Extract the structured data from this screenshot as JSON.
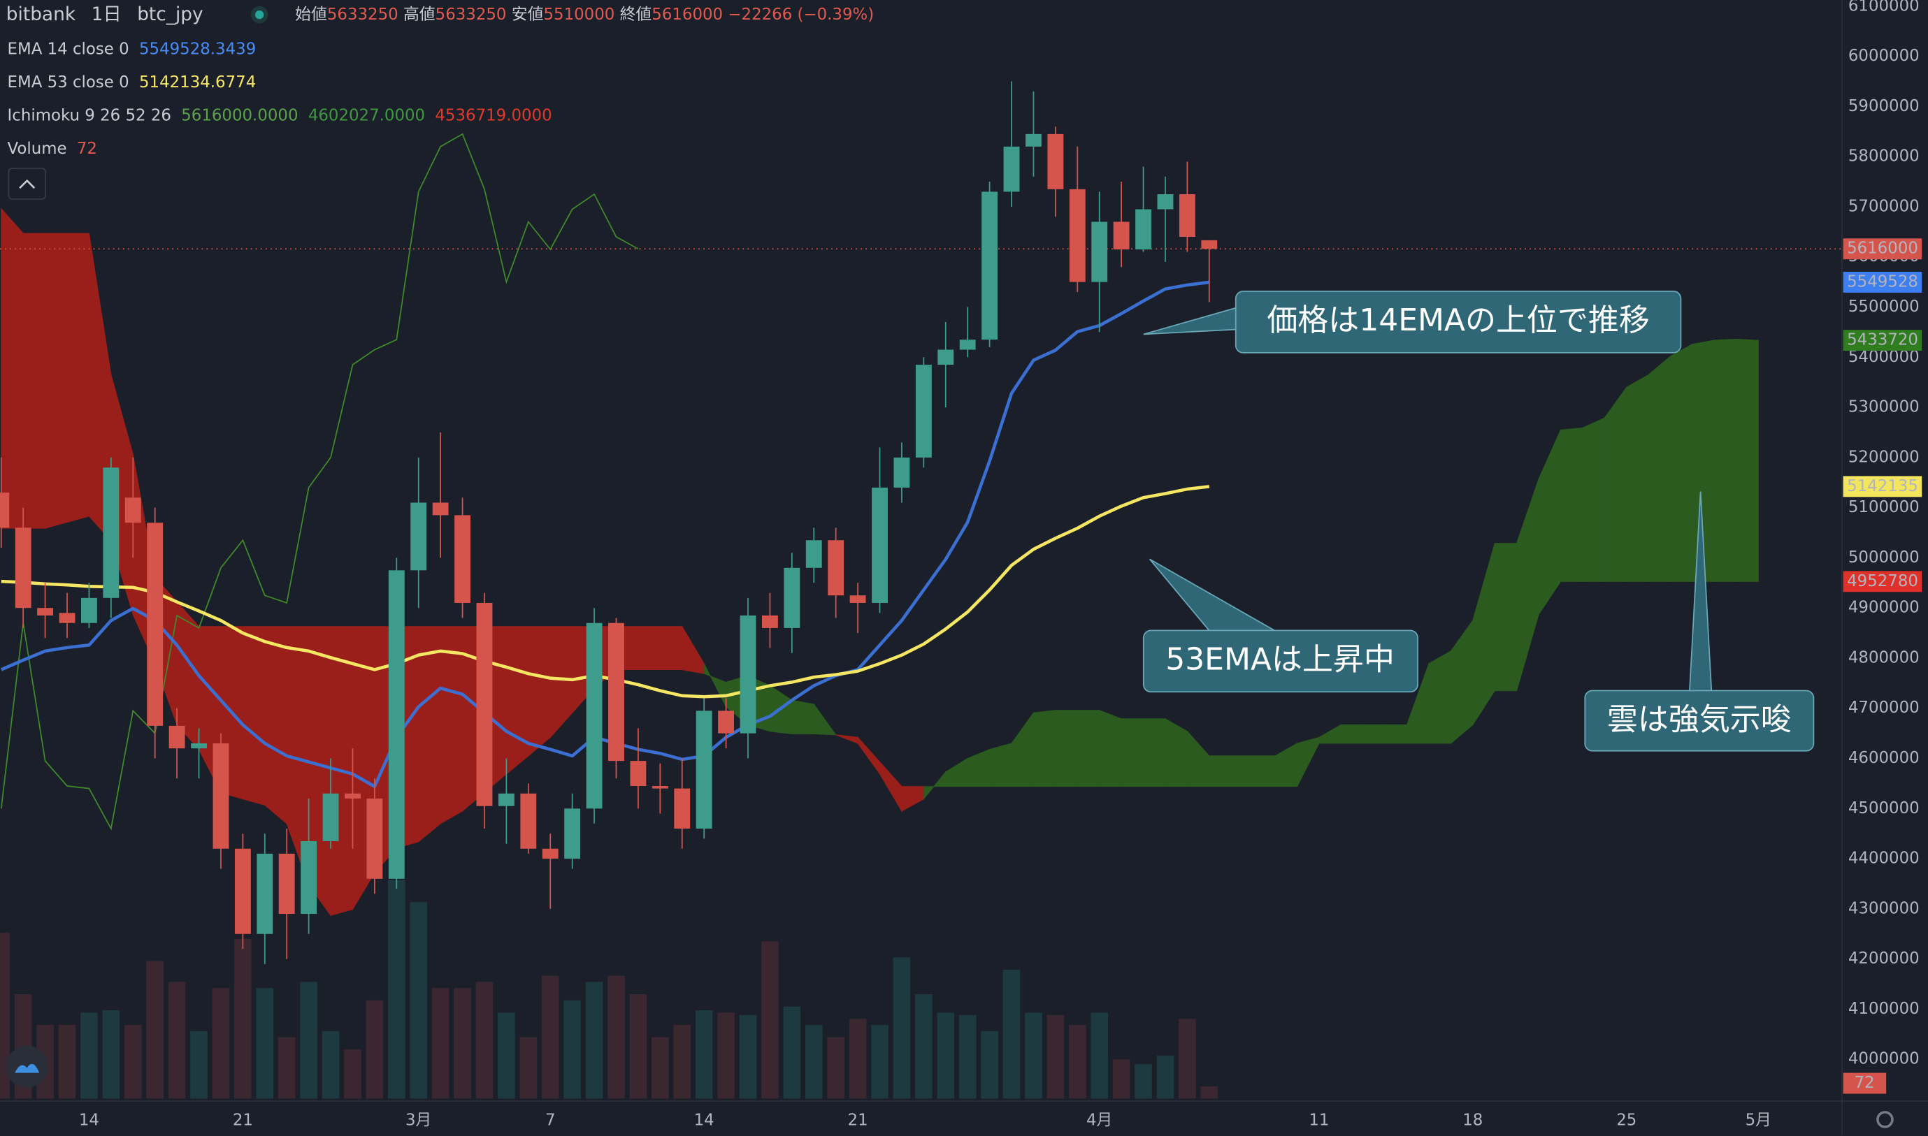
{
  "chart_data": {
    "type": "candlestick",
    "exchange": "bitbank",
    "interval": "1日",
    "symbol": "btc_jpy",
    "ohlc_labels": [
      "始値",
      "高値",
      "安値",
      "終値"
    ],
    "change_label": "−22266 (−0.39%)",
    "annotations": [
      "価格は14EMAの上位で推移",
      "53EMAは上昇中",
      "雲は強気示唆"
    ],
    "xlim": [
      0,
      80
    ],
    "xticks": [
      {
        "value": 4,
        "label": "14"
      },
      {
        "value": 11,
        "label": "21"
      },
      {
        "value": 19,
        "label": "3月"
      },
      {
        "value": 25,
        "label": "7"
      },
      {
        "value": 32,
        "label": "14"
      },
      {
        "value": 39,
        "label": "21"
      },
      {
        "value": 50,
        "label": "4月"
      },
      {
        "value": 60,
        "label": "11"
      },
      {
        "value": 67,
        "label": "18"
      },
      {
        "value": 74,
        "label": "25"
      },
      {
        "value": 80,
        "label": "5月"
      }
    ],
    "ylim": [
      4000000,
      6100000
    ],
    "yticks": [
      4000000,
      4100000,
      4200000,
      4300000,
      4400000,
      4500000,
      4600000,
      4700000,
      4800000,
      4900000,
      5000000,
      5100000,
      5200000,
      5300000,
      5400000,
      5500000,
      5600000,
      5700000,
      5800000,
      5900000,
      6000000,
      6100000
    ],
    "grid": false,
    "colors": {
      "up": "#3d9c8b",
      "down": "#d5554d",
      "volume_up": "#1c3a40",
      "volume_down": "#3a2730",
      "cloud_up": "#2b5b1f",
      "cloud_down": "#9a1f1a",
      "lagging": "#3f8a2a"
    },
    "candles": {
      "open": [
        5130000,
        5060000,
        4900000,
        4890000,
        4870000,
        4920000,
        5120000,
        5070000,
        4665000,
        4620000,
        4630000,
        4420000,
        4250000,
        4410000,
        4290000,
        4435000,
        4530000,
        4520000,
        4360000,
        4975000,
        5110000,
        5085000,
        4910000,
        4505000,
        4530000,
        4420000,
        4400000,
        4500000,
        4870000,
        4595000,
        4545000,
        4540000,
        4460000,
        4695000,
        4650000,
        4885000,
        4860000,
        4980000,
        5035000,
        4925000,
        4910000,
        5140000,
        5200000,
        5385000,
        5415000,
        5435000,
        5730000,
        5820000,
        5845000,
        5735000,
        5550000,
        5670000,
        5615000,
        5695000,
        5725000,
        5633250
      ],
      "high": [
        5200000,
        5100000,
        4950000,
        4930000,
        4950000,
        5200000,
        5200000,
        5100000,
        4700000,
        4660000,
        4650000,
        4450000,
        4450000,
        4460000,
        4520000,
        4600000,
        4620000,
        4560000,
        5000000,
        5200000,
        5250000,
        5120000,
        4930000,
        4600000,
        4550000,
        4450000,
        4530000,
        4900000,
        4880000,
        4660000,
        4590000,
        4600000,
        4720000,
        4720000,
        4920000,
        4930000,
        5010000,
        5060000,
        5060000,
        4950000,
        5220000,
        5230000,
        5400000,
        5470000,
        5500000,
        5750000,
        5950000,
        5930000,
        5860000,
        5820000,
        5730000,
        5750000,
        5780000,
        5760000,
        5790000,
        5633250
      ],
      "low": [
        5020000,
        4860000,
        4840000,
        4840000,
        4860000,
        4880000,
        5000000,
        4600000,
        4560000,
        4560000,
        4380000,
        4220000,
        4190000,
        4200000,
        4250000,
        4420000,
        4420000,
        4330000,
        4340000,
        4900000,
        5000000,
        4880000,
        4460000,
        4430000,
        4410000,
        4300000,
        4380000,
        4470000,
        4560000,
        4500000,
        4490000,
        4420000,
        4440000,
        4620000,
        4600000,
        4820000,
        4810000,
        4950000,
        4880000,
        4850000,
        4890000,
        5110000,
        5180000,
        5300000,
        5400000,
        5420000,
        5700000,
        5760000,
        5680000,
        5530000,
        5450000,
        5580000,
        5610000,
        5590000,
        5610000,
        5510000
      ],
      "close": [
        5060000,
        4900000,
        4885000,
        4870000,
        4920000,
        5180000,
        5070000,
        4665000,
        4620000,
        4630000,
        4420000,
        4250000,
        4410000,
        4290000,
        4435000,
        4530000,
        4520000,
        4360000,
        4975000,
        5110000,
        5085000,
        4910000,
        4505000,
        4530000,
        4420000,
        4400000,
        4500000,
        4870000,
        4595000,
        4545000,
        4540000,
        4460000,
        4695000,
        4650000,
        4885000,
        4860000,
        4980000,
        5035000,
        4925000,
        4910000,
        5140000,
        5200000,
        5385000,
        5415000,
        5435000,
        5730000,
        5820000,
        5845000,
        5735000,
        5550000,
        5670000,
        5615000,
        5695000,
        5725000,
        5640000,
        5616000
      ]
    },
    "ema14": {
      "name": "EMA 14 close 0",
      "color": "#3b6fd1",
      "values": [
        4777000,
        4796000,
        4814000,
        4821000,
        4826000,
        4875000,
        4899000,
        4875000,
        4826000,
        4765000,
        4716000,
        4667000,
        4630000,
        4605000,
        4593000,
        4581000,
        4569000,
        4544000,
        4642000,
        4703000,
        4740000,
        4728000,
        4691000,
        4654000,
        4630000,
        4618000,
        4605000,
        4642000,
        4630000,
        4618000,
        4610000,
        4598000,
        4605000,
        4642000,
        4667000,
        4684000,
        4716000,
        4745000,
        4765000,
        4777000,
        4826000,
        4875000,
        4936000,
        4997000,
        5071000,
        5193000,
        5328000,
        5394000,
        5414000,
        5451000,
        5463000,
        5487000,
        5512000,
        5536000,
        5544000,
        5549528.3439
      ]
    },
    "ema53": {
      "name": "EMA 53 close 0",
      "color": "#f5e663",
      "values": [
        4953000,
        4951000,
        4948000,
        4946000,
        4943000,
        4942000,
        4941000,
        4931000,
        4912000,
        4894000,
        4875000,
        4850000,
        4833000,
        4821000,
        4814000,
        4801000,
        4789000,
        4777000,
        4789000,
        4806000,
        4814000,
        4809000,
        4794000,
        4782000,
        4769000,
        4760000,
        4757000,
        4765000,
        4757000,
        4747000,
        4735000,
        4725000,
        4723000,
        4725000,
        4735000,
        4745000,
        4752000,
        4762000,
        4767000,
        4774000,
        4789000,
        4806000,
        4828000,
        4858000,
        4892000,
        4936000,
        4985000,
        5017000,
        5039000,
        5059000,
        5083000,
        5103000,
        5120000,
        5128000,
        5137000,
        5142134.6774
      ]
    },
    "ichimoku": {
      "name": "Ichimoku",
      "params": [
        9,
        26,
        52,
        26
      ],
      "legend_values": [
        "5616000.0000",
        "4602027.0000",
        "4536719.0000"
      ],
      "span_a": [
        5059000,
        5059000,
        5059000,
        5071000,
        5083000,
        5034000,
        4887000,
        4789000,
        4667000,
        4618000,
        4532000,
        4519000,
        4507000,
        4470000,
        4348000,
        4287000,
        4299000,
        4372000,
        4421000,
        4434000,
        4470000,
        4495000,
        4532000,
        4569000,
        4605000,
        4642000,
        4691000,
        4740000,
        4777000,
        4777000,
        4777000,
        4777000,
        4769000,
        4752000,
        4765000,
        4745000,
        4716000,
        4708000,
        4647000,
        4630000,
        4569000,
        4495000,
        4519000,
        4573000,
        4600000,
        4618000,
        4630000,
        4691000,
        4696000,
        4696000,
        4696000,
        4679000,
        4679000,
        4679000,
        4654000,
        4605000,
        4605000,
        4605000,
        4605000,
        4630000,
        4642000,
        4667000,
        4667000,
        4667000,
        4667000,
        4789000,
        4814000,
        4875000,
        5029000,
        5029000,
        5157000,
        5255000,
        5259000,
        5279000,
        5340000,
        5365000,
        5402000,
        5426000,
        5434000,
        5436000,
        5433720
      ],
      "span_b": [
        5696000,
        5647000,
        5647000,
        5647000,
        5647000,
        5365000,
        5206000,
        4961000,
        4912000,
        4863000,
        4863000,
        4863000,
        4863000,
        4863000,
        4863000,
        4863000,
        4863000,
        4863000,
        4863000,
        4863000,
        4863000,
        4863000,
        4863000,
        4863000,
        4863000,
        4863000,
        4863000,
        4863000,
        4863000,
        4863000,
        4863000,
        4863000,
        4789000,
        4703000,
        4667000,
        4654000,
        4649000,
        4649000,
        4647000,
        4642000,
        4593000,
        4544000,
        4544000,
        4544000,
        4544000,
        4544000,
        4544000,
        4544000,
        4544000,
        4544000,
        4544000,
        4544000,
        4544000,
        4544000,
        4544000,
        4544000,
        4544000,
        4544000,
        4544000,
        4544000,
        4630000,
        4630000,
        4630000,
        4630000,
        4630000,
        4630000,
        4630000,
        4667000,
        4735000,
        4735000,
        4887000,
        4952780,
        4952780,
        4952780,
        4952780,
        4952780,
        4952780,
        4952780,
        4952780,
        4952780,
        4952780
      ]
    },
    "volume": {
      "name": "Volume",
      "values": [
        972,
        612,
        432,
        432,
        504,
        518,
        432,
        806,
        684,
        396,
        648,
        936,
        648,
        360,
        684,
        396,
        288,
        576,
        1282,
        1152,
        648,
        648,
        684,
        504,
        360,
        720,
        576,
        684,
        720,
        612,
        360,
        432,
        518,
        504,
        490,
        922,
        540,
        432,
        360,
        468,
        432,
        828,
        612,
        504,
        490,
        396,
        756,
        504,
        490,
        432,
        504,
        230,
        202,
        252,
        468,
        72
      ]
    },
    "price_labels": [
      {
        "value": 5616000,
        "label": "5616000",
        "color": "#d5554d"
      },
      {
        "value": 5549528.3439,
        "label": "5549528",
        "color": "#3d7ef0"
      },
      {
        "value": 5433720,
        "label": "5433720",
        "color": "#2f7d1f"
      },
      {
        "value": 5142134.6774,
        "label": "5142135",
        "color": "#f4e55e"
      },
      {
        "value": 4952780,
        "label": "4952780",
        "color": "#e0302a"
      }
    ]
  }
}
